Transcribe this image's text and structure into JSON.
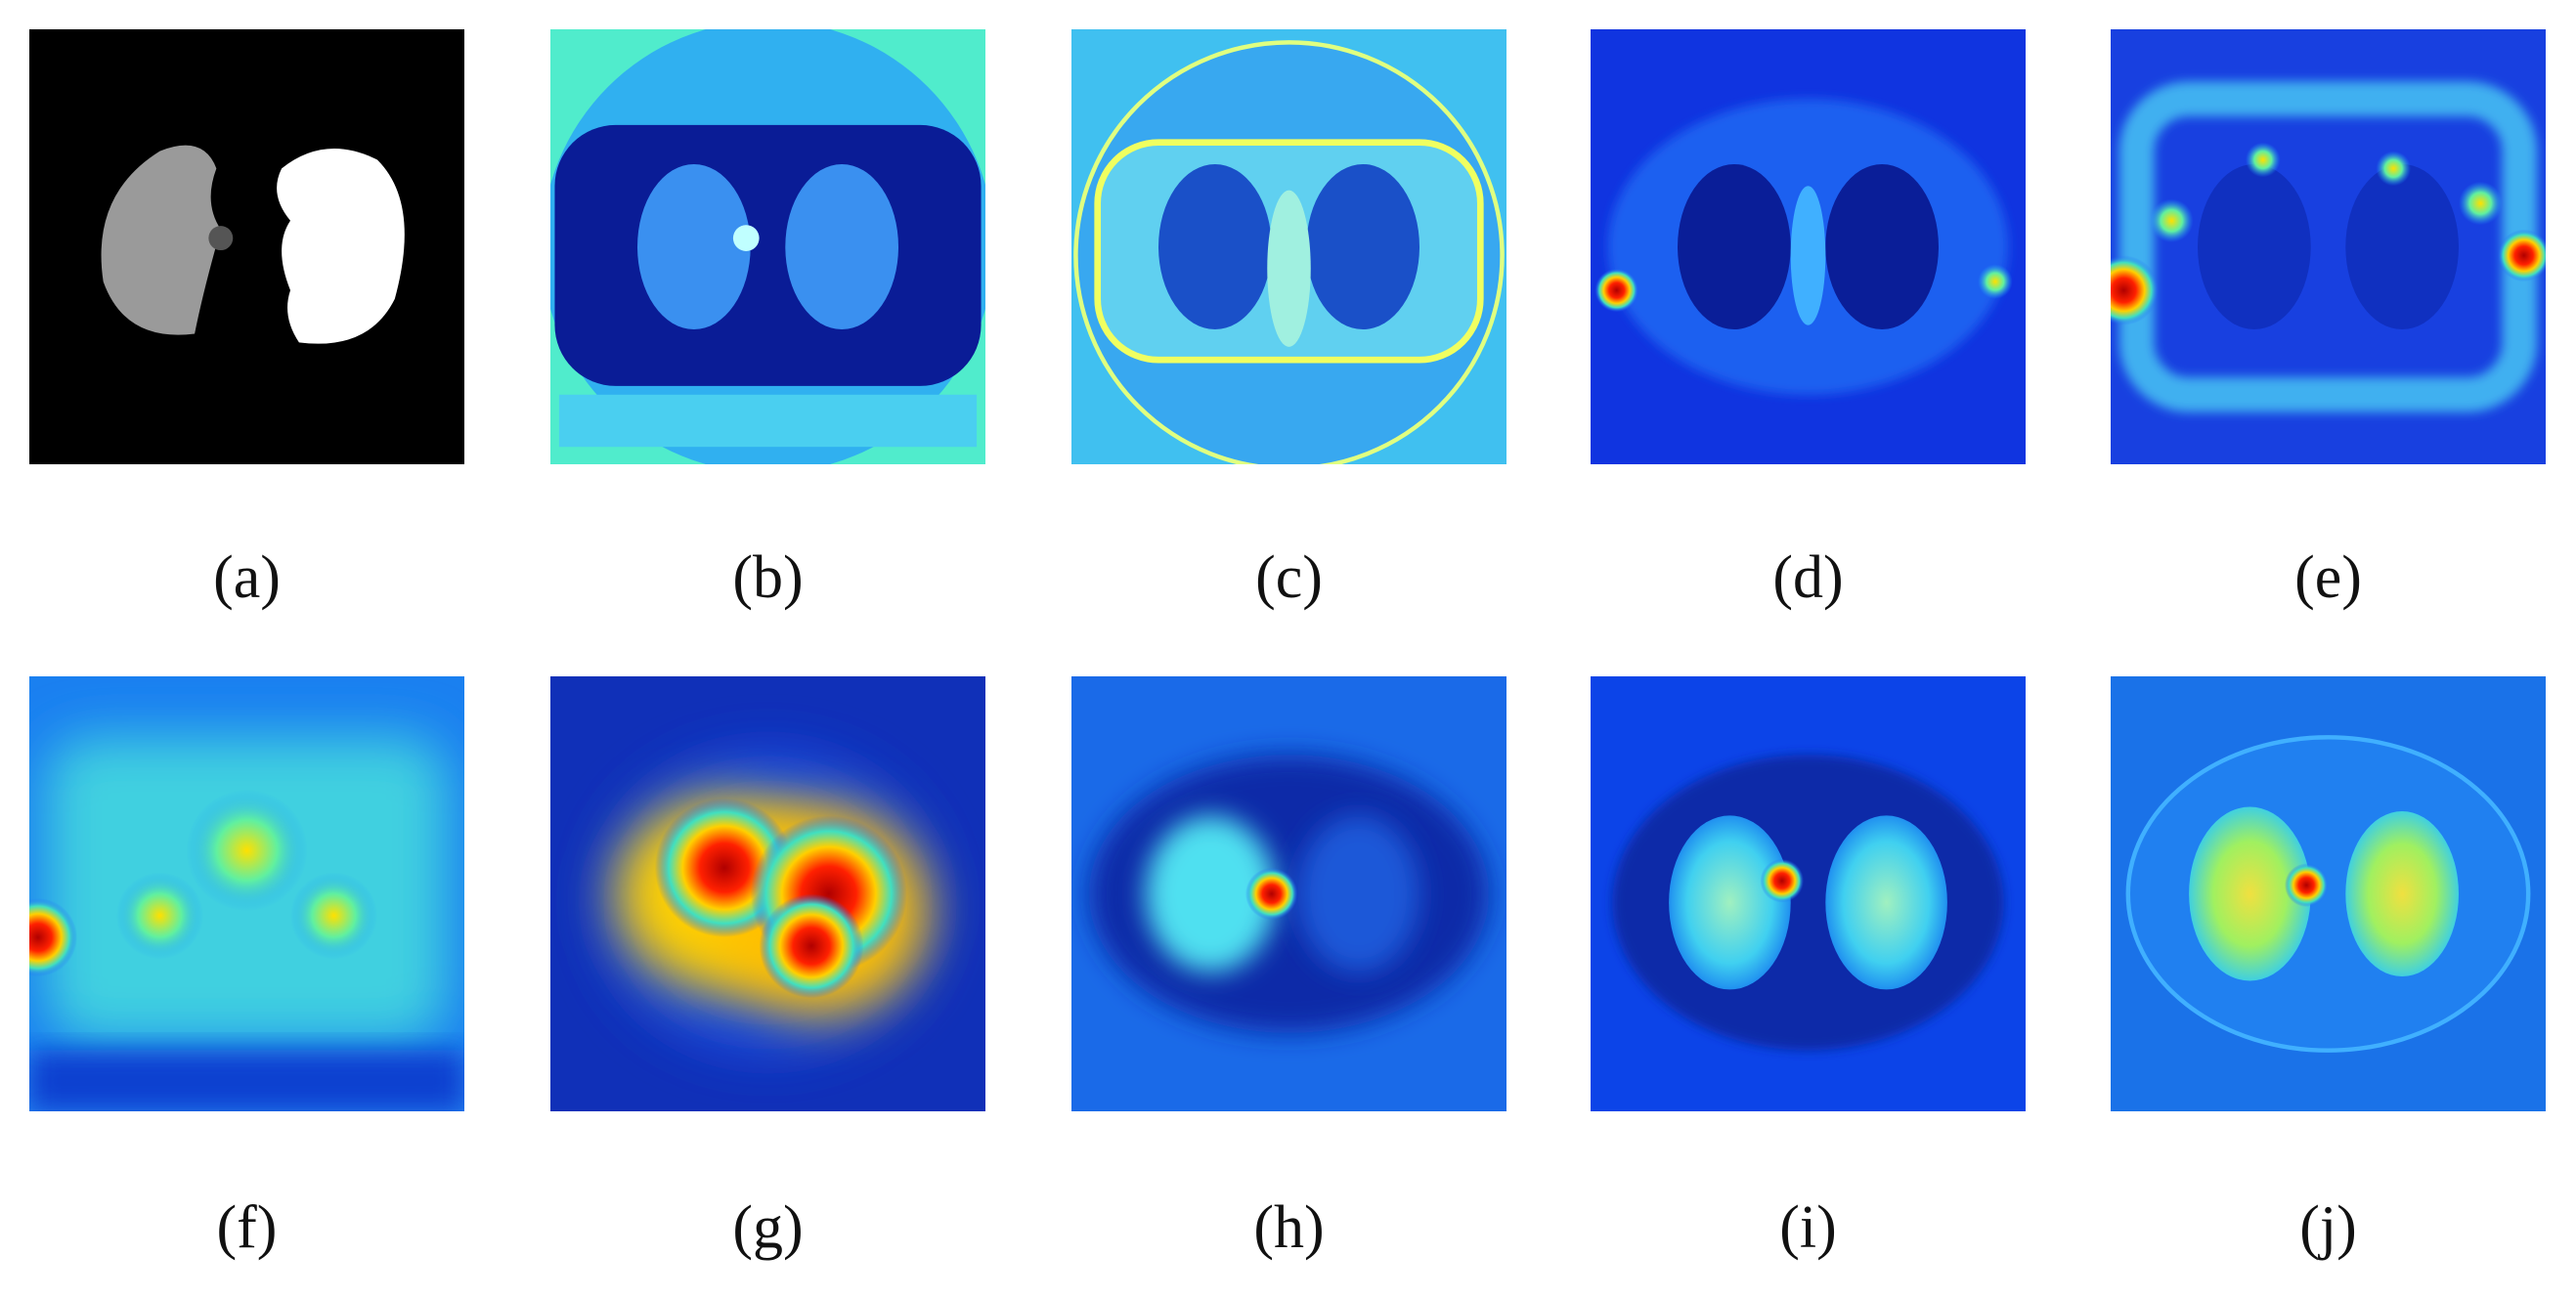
{
  "figure": {
    "panels": [
      {
        "label": "(a)"
      },
      {
        "label": "(b)"
      },
      {
        "label": "(c)"
      },
      {
        "label": "(d)"
      },
      {
        "label": "(e)"
      },
      {
        "label": "(f)"
      },
      {
        "label": "(g)"
      },
      {
        "label": "(h)"
      },
      {
        "label": "(i)"
      },
      {
        "label": "(j)"
      }
    ]
  }
}
